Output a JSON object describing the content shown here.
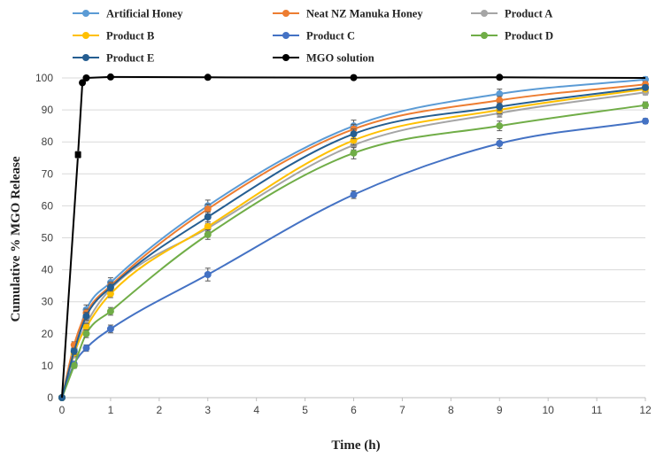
{
  "chart_data": {
    "type": "line",
    "title": "",
    "xlabel": "Time (h)",
    "ylabel": "Cumulative % MGO Release",
    "xlim": [
      0,
      12
    ],
    "ylim": [
      0,
      100
    ],
    "xticks": [
      0,
      1,
      2,
      3,
      4,
      5,
      6,
      7,
      8,
      9,
      10,
      11,
      12
    ],
    "yticks": [
      0,
      10,
      20,
      30,
      40,
      50,
      60,
      70,
      80,
      90,
      100
    ],
    "grid": "horizontal",
    "legend_position": "top",
    "series": [
      {
        "name": "Artificial Honey",
        "color": "#5B9BD5",
        "x": [
          0,
          0.25,
          0.5,
          1,
          3,
          6,
          9,
          12
        ],
        "y": [
          0,
          15,
          27.5,
          36,
          60,
          85,
          95,
          99.5
        ],
        "err": [
          0,
          1.2,
          1.5,
          1.5,
          1.8,
          1.8,
          1.5,
          0.8
        ]
      },
      {
        "name": "Neat NZ Manuka Honey",
        "color": "#ED7D31",
        "x": [
          0,
          0.25,
          0.5,
          1,
          3,
          6,
          9,
          12
        ],
        "y": [
          0,
          16.5,
          26.5,
          35,
          59,
          84,
          93,
          98
        ],
        "err": [
          0,
          1,
          1.2,
          1.2,
          1.5,
          1.5,
          1.2,
          0.8
        ]
      },
      {
        "name": "Product A",
        "color": "#A5A5A5",
        "x": [
          0,
          0.25,
          0.5,
          1,
          3,
          6,
          9,
          12
        ],
        "y": [
          0,
          13.5,
          23,
          34,
          53,
          79,
          89,
          95.5
        ],
        "err": [
          0,
          1,
          1.2,
          1.2,
          1.5,
          1.5,
          1.2,
          0.8
        ]
      },
      {
        "name": "Product B",
        "color": "#FFC000",
        "x": [
          0,
          0.25,
          0.5,
          1,
          3,
          6,
          9,
          12
        ],
        "y": [
          0,
          14,
          22,
          32.5,
          53.5,
          80.5,
          90,
          96.5
        ],
        "err": [
          0,
          1,
          1.2,
          1.2,
          1.5,
          1.5,
          1.2,
          0.8
        ]
      },
      {
        "name": "Product C",
        "color": "#4472C4",
        "x": [
          0,
          0.25,
          0.5,
          1,
          3,
          6,
          9,
          12
        ],
        "y": [
          0,
          10.5,
          15.5,
          21.5,
          38.5,
          63.5,
          79.5,
          86.5
        ],
        "err": [
          0,
          0.8,
          1,
          1.2,
          2,
          1.2,
          1.5,
          0.8
        ]
      },
      {
        "name": "Product D",
        "color": "#70AD47",
        "x": [
          0,
          0.25,
          0.5,
          1,
          3,
          6,
          9,
          12
        ],
        "y": [
          0,
          10,
          20,
          27,
          51,
          76.5,
          85,
          91.5
        ],
        "err": [
          0,
          0.8,
          1.2,
          1.2,
          1.5,
          1.8,
          1.5,
          1
        ]
      },
      {
        "name": "Product E",
        "color": "#255E91",
        "x": [
          0,
          0.25,
          0.5,
          1,
          3,
          6,
          9,
          12
        ],
        "y": [
          0,
          14.5,
          25.5,
          34.5,
          56.5,
          82.5,
          91,
          97
        ],
        "err": [
          0,
          1,
          1.2,
          1.2,
          1.5,
          1.5,
          1.2,
          0.8
        ]
      },
      {
        "name": "MGO solution",
        "color": "#000000",
        "x": [
          0,
          0.33,
          0.42,
          0.5,
          1,
          3,
          6,
          9,
          12
        ],
        "y": [
          0,
          76,
          98.5,
          100,
          100.3,
          100.2,
          100.1,
          100.2,
          100
        ],
        "err": [
          0,
          1,
          0,
          0,
          0,
          0,
          0,
          0,
          0
        ],
        "straight": true,
        "markers_at": [
          2,
          3,
          4,
          5,
          6,
          7
        ],
        "square_marker_at": [
          1
        ]
      }
    ]
  }
}
